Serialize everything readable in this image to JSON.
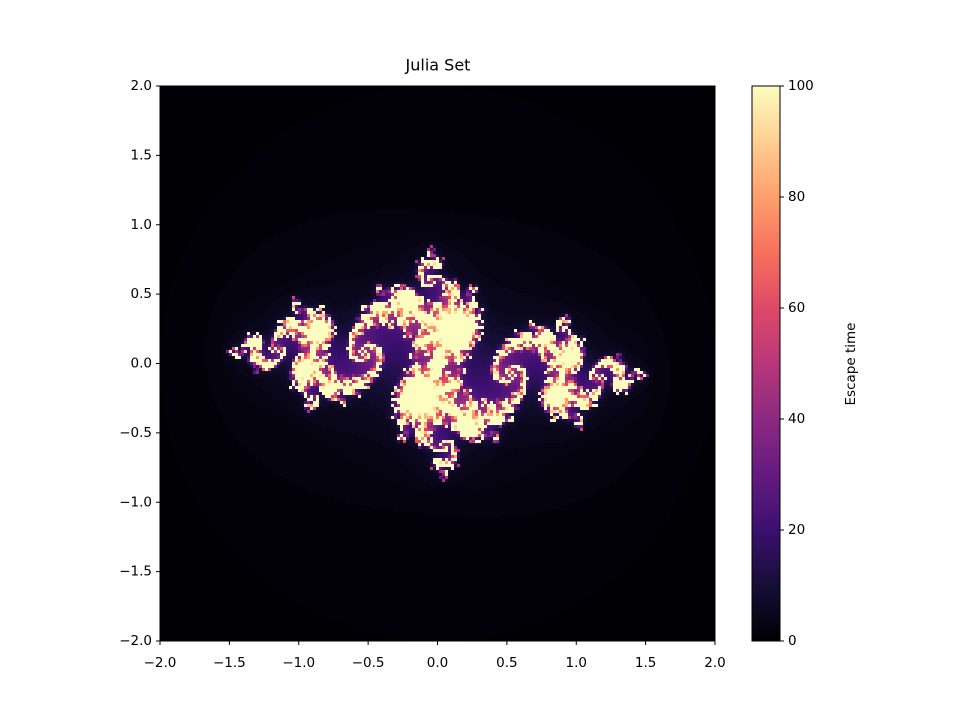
{
  "chart_data": {
    "type": "heatmap",
    "title": "Julia Set",
    "julia_c": [
      -0.8,
      0.156
    ],
    "max_iter": 100,
    "colormap": "magma",
    "xlim": [
      -2.0,
      2.0
    ],
    "ylim": [
      -2.0,
      2.0
    ],
    "xticks": [
      {
        "value": -2.0,
        "label": "−2.0"
      },
      {
        "value": -1.5,
        "label": "−1.5"
      },
      {
        "value": -1.0,
        "label": "−1.0"
      },
      {
        "value": -0.5,
        "label": "−0.5"
      },
      {
        "value": 0,
        "label": "0.0"
      },
      {
        "value": 0.5,
        "label": "0.5"
      },
      {
        "value": 1.0,
        "label": "1.0"
      },
      {
        "value": 1.5,
        "label": "1.5"
      },
      {
        "value": 2.0,
        "label": "2.0"
      }
    ],
    "yticks": [
      {
        "value": -2.0,
        "label": "−2.0"
      },
      {
        "value": -1.5,
        "label": "−1.5"
      },
      {
        "value": -1.0,
        "label": "−1.0"
      },
      {
        "value": -0.5,
        "label": "−0.5"
      },
      {
        "value": 0,
        "label": "0.0"
      },
      {
        "value": 0.5,
        "label": "0.5"
      },
      {
        "value": 1.0,
        "label": "1.0"
      },
      {
        "value": 1.5,
        "label": "1.5"
      },
      {
        "value": 2.0,
        "label": "2.0"
      }
    ],
    "colorbar": {
      "label": "Escape time",
      "clim": [
        0,
        100
      ],
      "ticks": [
        0,
        20,
        40,
        60,
        80,
        100
      ]
    }
  }
}
